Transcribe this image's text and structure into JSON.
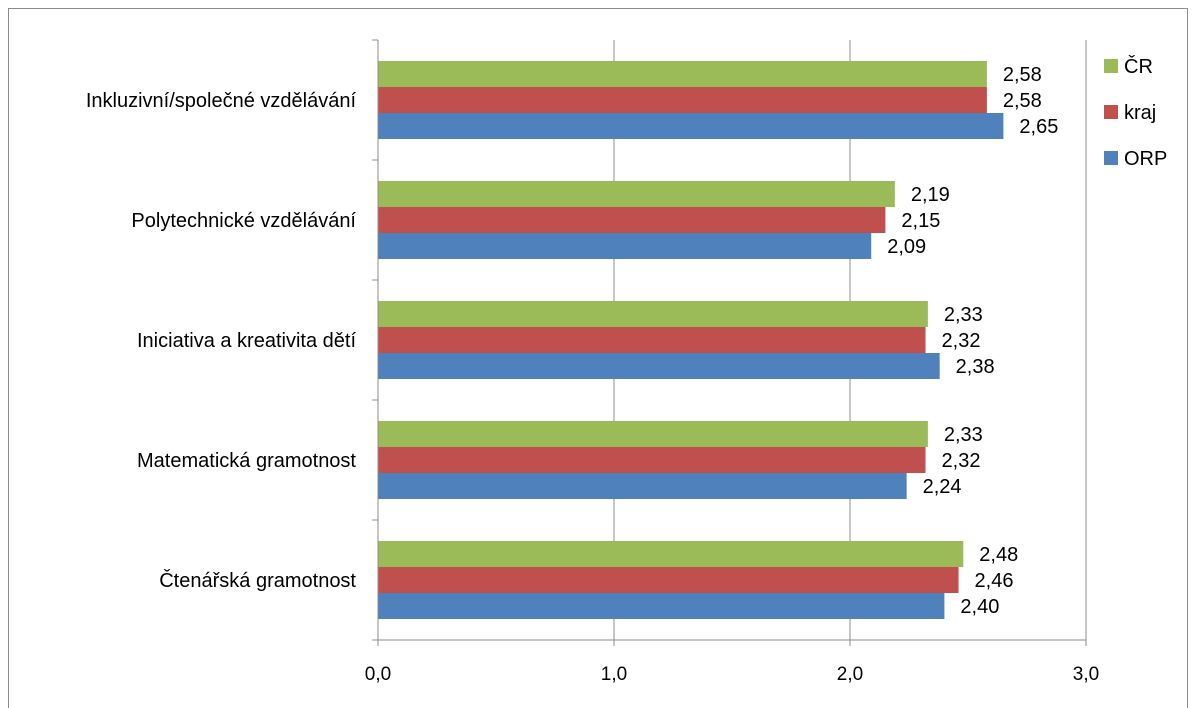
{
  "chart_data": {
    "type": "bar",
    "orientation": "horizontal",
    "categories": [
      "Inkluzivní/společné vzdělávání",
      "Polytechnické vzdělávání",
      "Iniciativa a kreativita dětí",
      "Matematická gramotnost",
      "Čtenářská gramotnost"
    ],
    "series": [
      {
        "name": "ČR",
        "color": "#9BBB59",
        "values": [
          2.58,
          2.19,
          2.33,
          2.33,
          2.48
        ],
        "labels": [
          "2,58",
          "2,19",
          "2,33",
          "2,33",
          "2,48"
        ]
      },
      {
        "name": "kraj",
        "color": "#C0504D",
        "values": [
          2.58,
          2.15,
          2.32,
          2.32,
          2.46
        ],
        "labels": [
          "2,58",
          "2,15",
          "2,32",
          "2,32",
          "2,46"
        ]
      },
      {
        "name": "ORP",
        "color": "#4F81BD",
        "values": [
          2.65,
          2.09,
          2.38,
          2.24,
          2.4
        ],
        "labels": [
          "2,65",
          "2,09",
          "2,38",
          "2,24",
          "2,40"
        ]
      }
    ],
    "xlim": [
      0,
      3
    ],
    "x_ticks": [
      0,
      1,
      2,
      3
    ],
    "x_tick_labels": [
      "0,0",
      "1,0",
      "2,0",
      "3,0"
    ],
    "grid": "vertical",
    "legend": "right",
    "title": "",
    "xlabel": "",
    "ylabel": ""
  }
}
